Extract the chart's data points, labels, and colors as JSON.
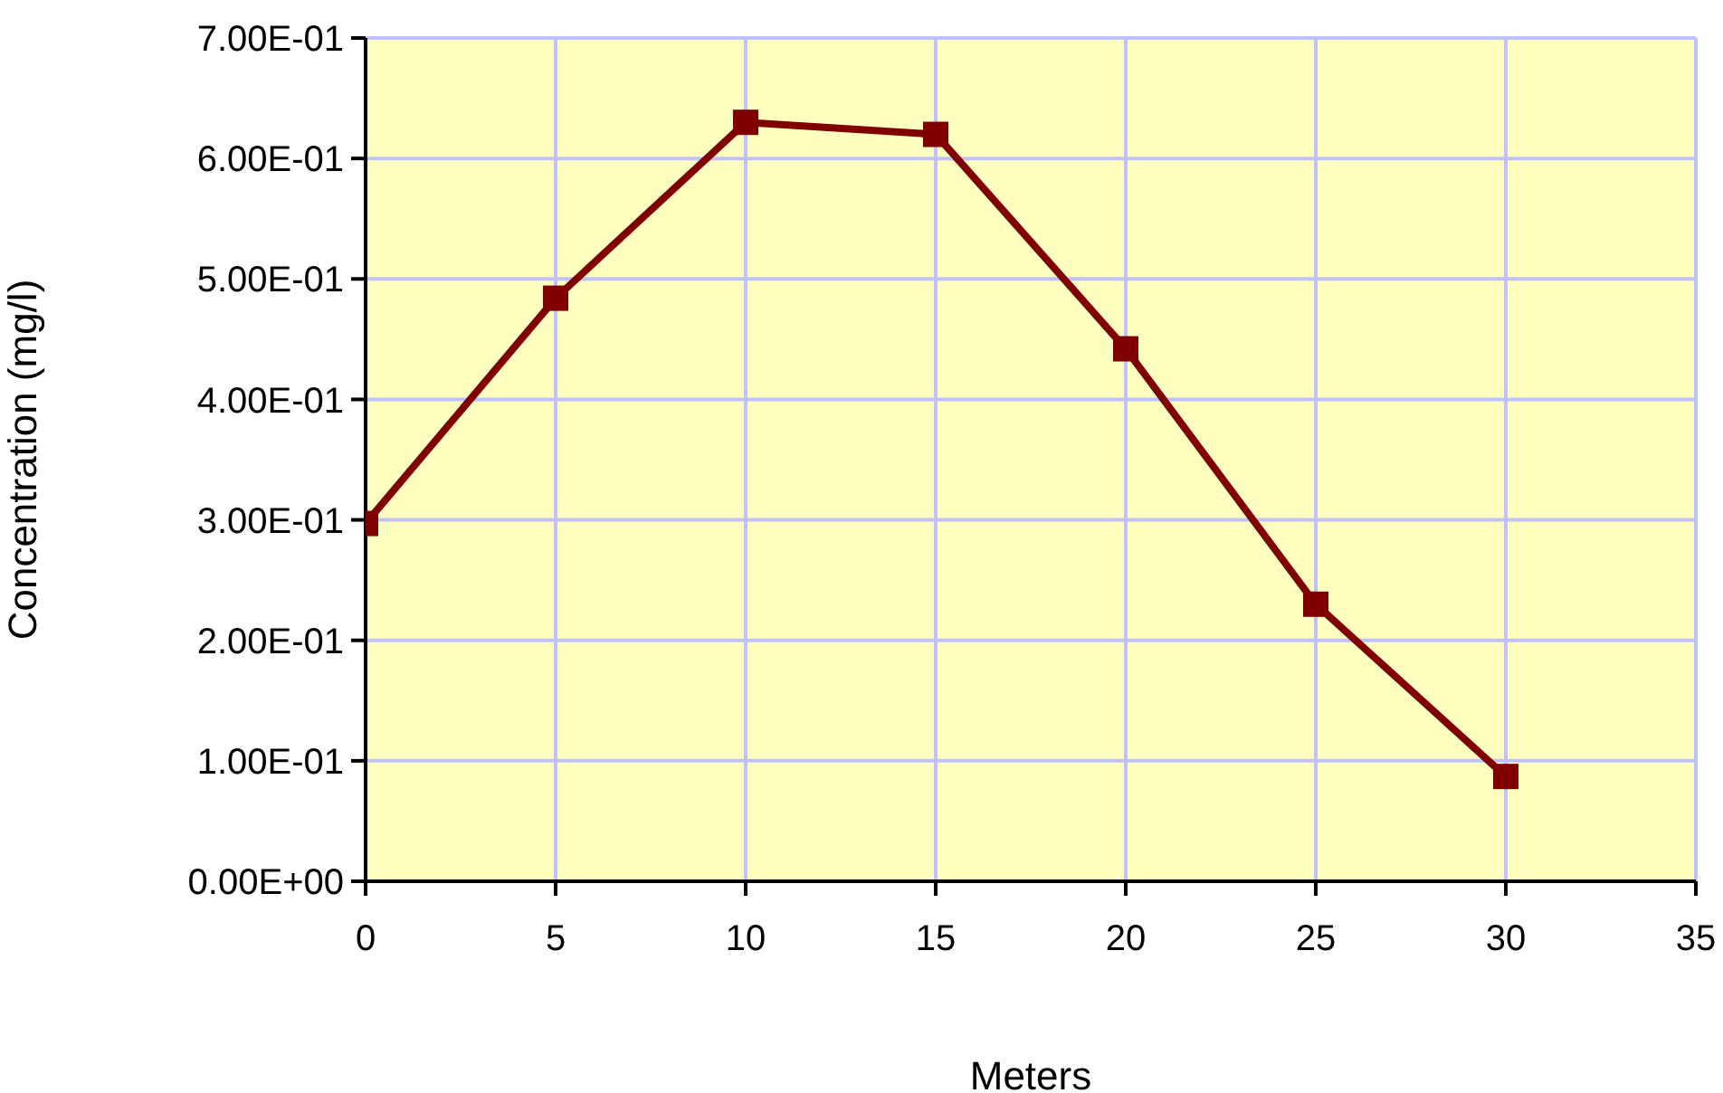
{
  "chart_data": {
    "type": "line",
    "xlabel": "Meters",
    "ylabel": "Concentration (mg/l)",
    "x": [
      0,
      5,
      10,
      15,
      20,
      25,
      30
    ],
    "series": [
      {
        "color": "#800000",
        "values": [
          0.297,
          0.484,
          0.63,
          0.62,
          0.442,
          0.23,
          0.087
        ]
      }
    ],
    "xlim": [
      0,
      35
    ],
    "xticks": [
      0,
      5,
      10,
      15,
      20,
      25,
      30,
      35
    ],
    "ylim": [
      0,
      0.7
    ],
    "yticks": [
      {
        "value": 0,
        "label": "0.00E+00"
      },
      {
        "value": 0.1,
        "label": "1.00E-01"
      },
      {
        "value": 0.2,
        "label": "2.00E-01"
      },
      {
        "value": 0.3,
        "label": "3.00E-01"
      },
      {
        "value": 0.4,
        "label": "4.00E-01"
      },
      {
        "value": 0.5,
        "label": "5.00E-01"
      },
      {
        "value": 0.6,
        "label": "6.00E-01"
      },
      {
        "value": 0.7,
        "label": "7.00E-01"
      }
    ],
    "grid": true,
    "marker": "square",
    "line_style": "solid",
    "legend": false
  }
}
